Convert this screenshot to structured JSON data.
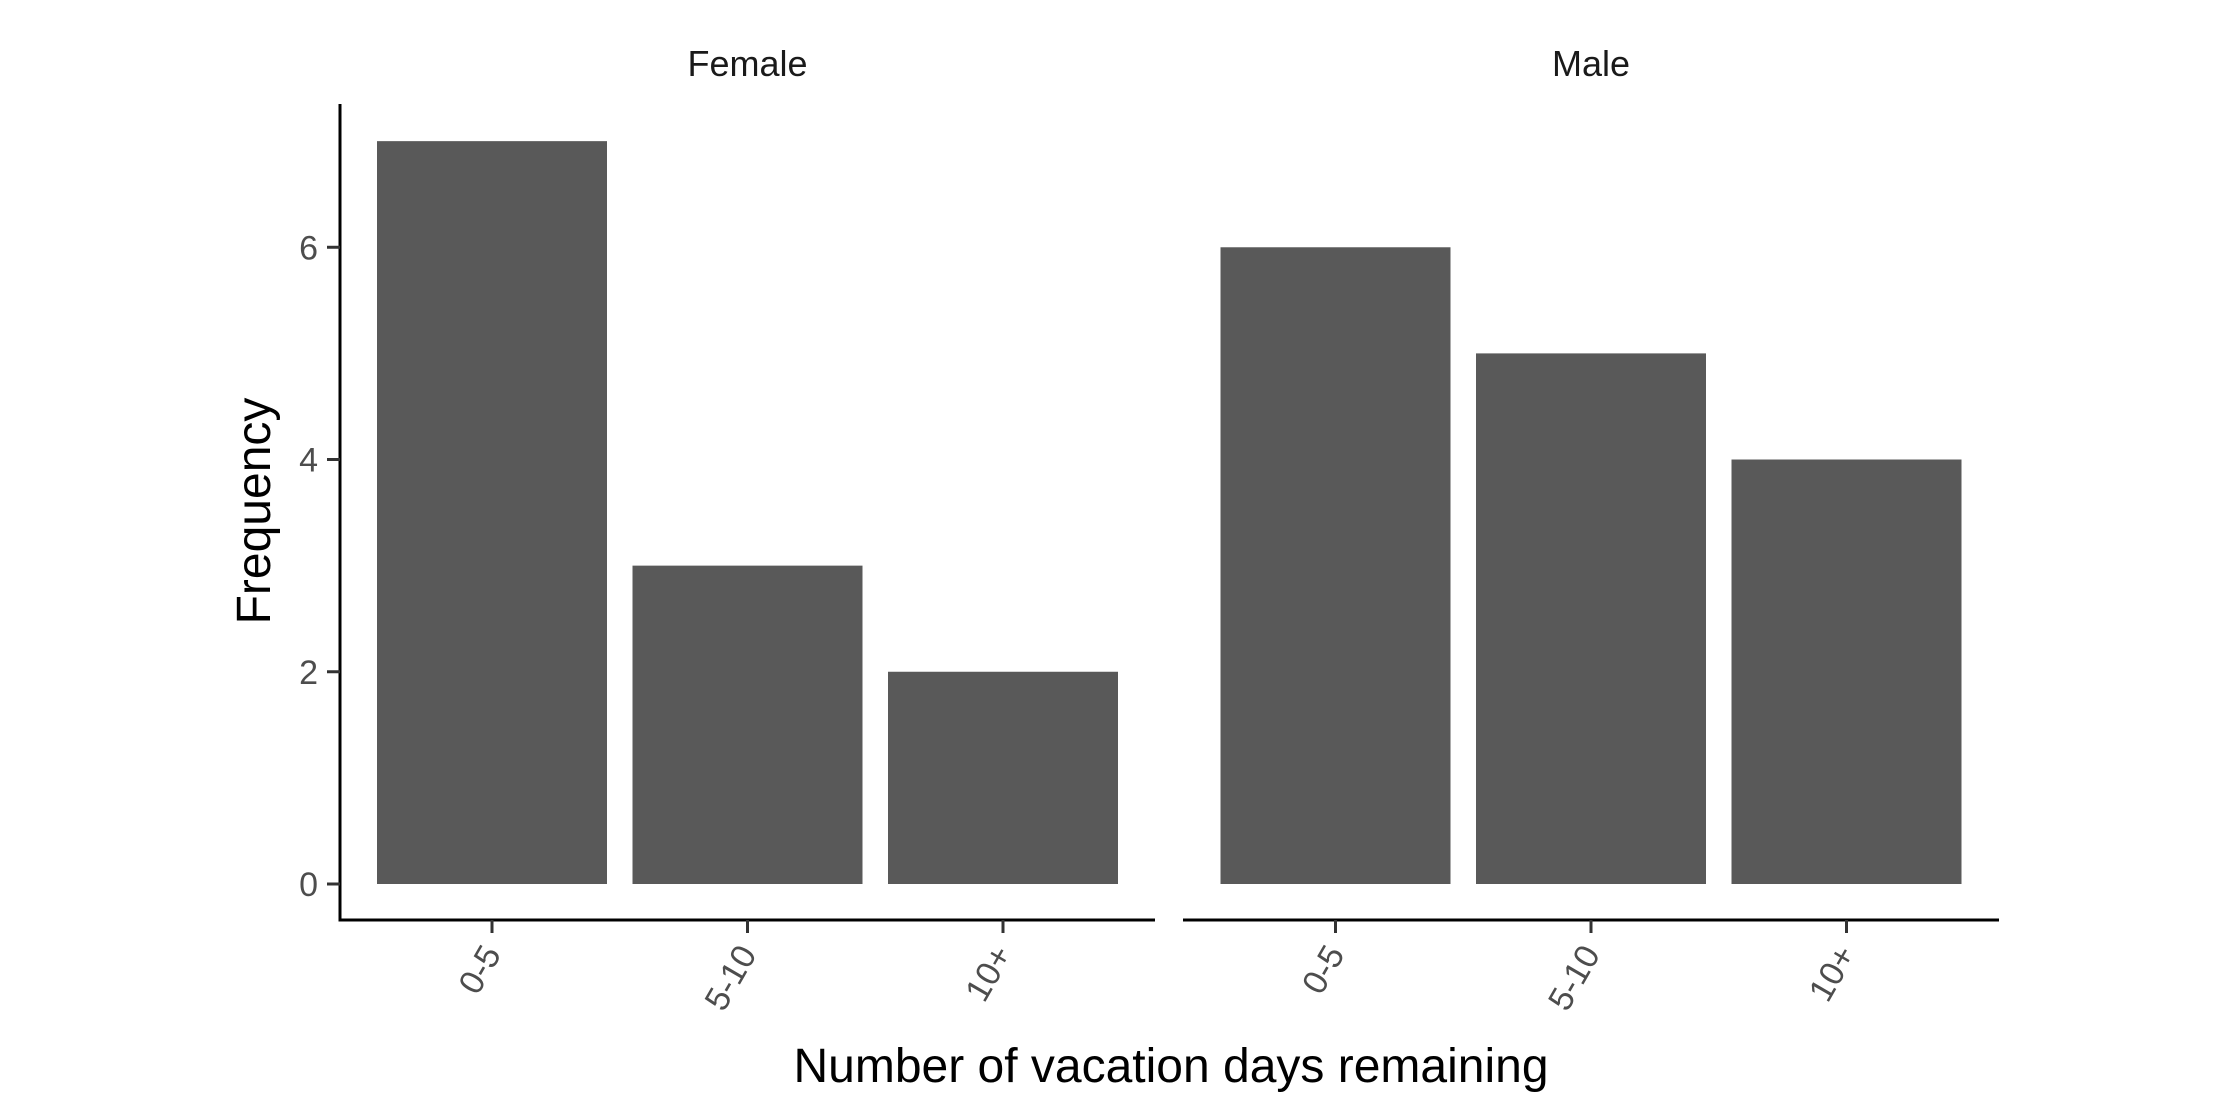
{
  "chart_data": {
    "type": "bar",
    "layout": "faceted",
    "categories": [
      "0-5",
      "5-10",
      "10+"
    ],
    "facets": [
      {
        "name": "Female",
        "values": [
          7,
          3,
          2
        ]
      },
      {
        "name": "Male",
        "values": [
          6,
          5,
          4
        ]
      }
    ],
    "xlabel": "Number of vacation days remaining",
    "ylabel": "Frequency",
    "ylim": [
      0,
      7.35
    ],
    "yticks": [
      0,
      2,
      4,
      6
    ],
    "grid": false,
    "legend": "none",
    "bar_color": "#595959"
  }
}
